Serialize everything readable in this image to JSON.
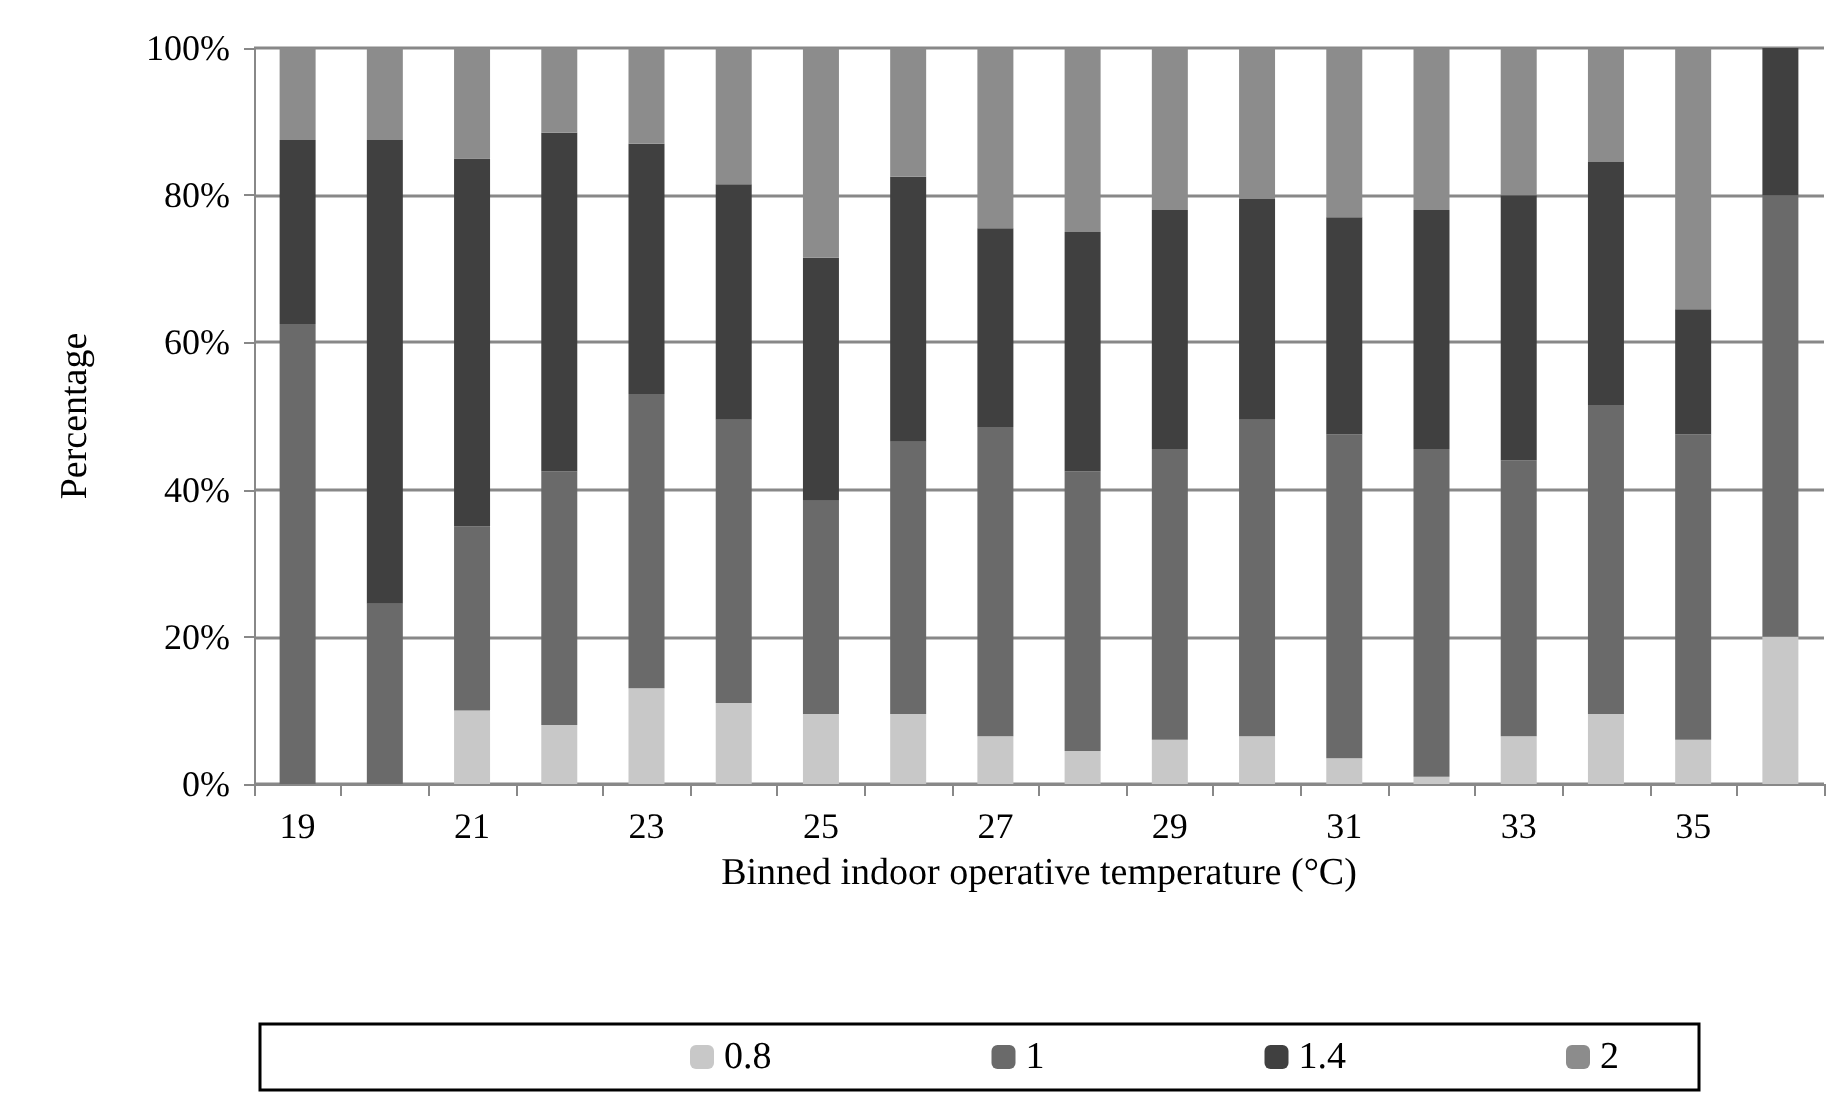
{
  "chart_data": {
    "type": "bar",
    "stacked": true,
    "xlabel": "Binned indoor operative temperature (°C)",
    "ylabel": "Percentage",
    "categories": [
      "19",
      null,
      "21",
      null,
      "23",
      null,
      "25",
      null,
      "27",
      null,
      "29",
      null,
      "31",
      null,
      "33",
      null,
      "35",
      null
    ],
    "series": [
      {
        "name": "0.8",
        "color": "#c8c8c8",
        "values": [
          0,
          0,
          10,
          8,
          13,
          11,
          9.5,
          9.5,
          6.5,
          4.5,
          6,
          6.5,
          3.5,
          1,
          6.5,
          9.5,
          6,
          20
        ]
      },
      {
        "name": "1",
        "color": "#6a6a6a",
        "values": [
          62.5,
          24.5,
          25,
          34.5,
          40,
          38.5,
          29,
          37,
          42,
          38,
          39.5,
          43,
          44,
          44.5,
          37.5,
          42,
          41.5,
          60
        ]
      },
      {
        "name": "1.4",
        "color": "#404040",
        "values": [
          25,
          63,
          50,
          46,
          34,
          32,
          33,
          36,
          27,
          32.5,
          32.5,
          30,
          29.5,
          32.5,
          36,
          33,
          17,
          20
        ]
      },
      {
        "name": "2",
        "color": "#8c8c8c",
        "values": [
          12.5,
          12.5,
          15,
          11.5,
          13,
          18.5,
          28.5,
          17.5,
          24.5,
          25,
          22,
          20.5,
          23,
          22,
          20,
          15.5,
          35.5,
          0
        ]
      }
    ],
    "ylim": [
      0,
      100
    ],
    "yticks": [
      {
        "value": 0,
        "label": "0%"
      },
      {
        "value": 20,
        "label": "20%"
      },
      {
        "value": 40,
        "label": "40%"
      },
      {
        "value": 60,
        "label": "60%"
      },
      {
        "value": 80,
        "label": "80%"
      },
      {
        "value": 100,
        "label": "100%"
      }
    ],
    "grid": "y",
    "legend": "bottom"
  }
}
